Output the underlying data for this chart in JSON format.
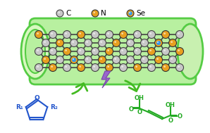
{
  "bg_color": "#ffffff",
  "tube_color": "#b8f0a0",
  "tube_border_color": "#55cc44",
  "tube_ellipse_color": "#ccf5b8",
  "node_C_color": "#c8c8c8",
  "node_C_edge": "#444444",
  "node_N_color": "#e8a020",
  "node_N_edge": "#333333",
  "node_Se_color_inner": "#4488ff",
  "node_Se_color_outer": "#e8a020",
  "bond_color": "#444444",
  "arrow_color": "#44bb22",
  "lightning_color": "#9966cc",
  "furan_color": "#2255cc",
  "maleic_color": "#22aa22",
  "legend_label_C": "C",
  "legend_label_N": "N",
  "legend_label_Se": "Se"
}
